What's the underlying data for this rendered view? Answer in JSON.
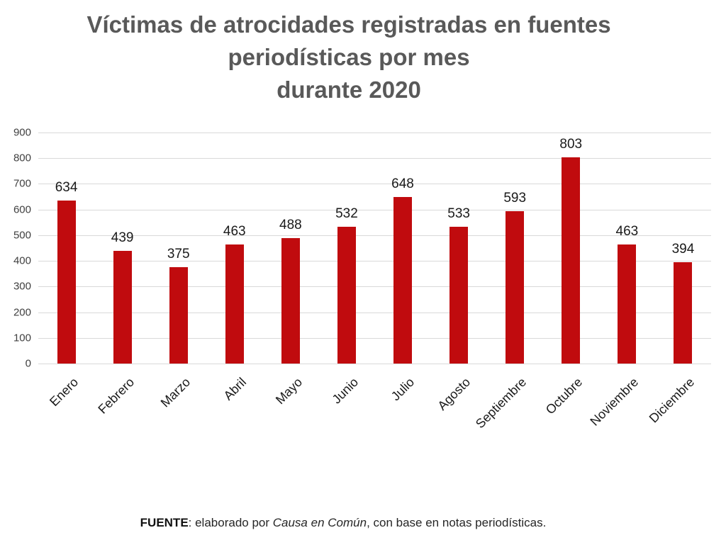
{
  "title": {
    "lines": [
      "Víctimas de atrocidades registradas en fuentes",
      "periodísticas por mes",
      "durante 2020"
    ]
  },
  "chart_data": {
    "type": "bar",
    "title": "Víctimas de atrocidades registradas en fuentes periodísticas por mes durante 2020",
    "categories": [
      "Enero",
      "Febrero",
      "Marzo",
      "Abril",
      "Mayo",
      "Junio",
      "Julio",
      "Agosto",
      "Septiembre",
      "Octubre",
      "Noviembre",
      "Diciembre"
    ],
    "values": [
      634,
      439,
      375,
      463,
      488,
      532,
      648,
      533,
      593,
      803,
      463,
      394
    ],
    "xlabel": "",
    "ylabel": "",
    "ylim": [
      0,
      900
    ],
    "ytick_step": 100,
    "yticks": [
      0,
      100,
      200,
      300,
      400,
      500,
      600,
      700,
      800,
      900
    ],
    "grid": true,
    "data_labels": true,
    "legend": "none",
    "bar_color": "#C00B0E",
    "gridline_color": "#D9D9D9",
    "tick_label_color": "#404040",
    "data_label_color": "#1a1a1a",
    "title_color": "#595959"
  },
  "footer": {
    "bold": "FUENTE",
    "rest1": ": elaborado por ",
    "italic": "Causa en Común",
    "rest2": ", con base en notas periodísticas."
  }
}
